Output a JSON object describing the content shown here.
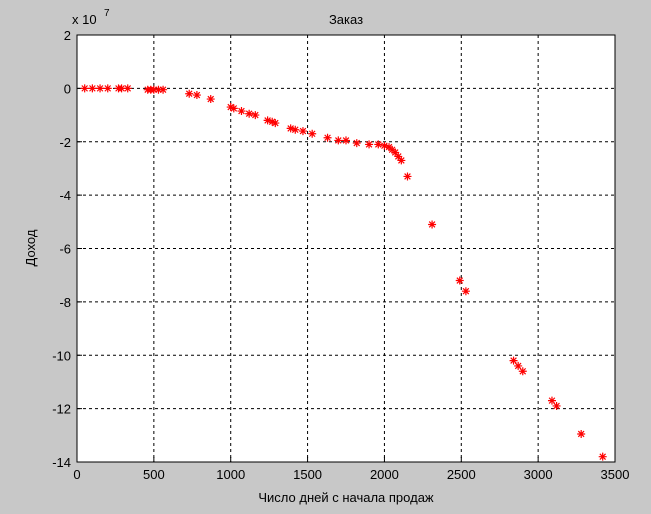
{
  "chart_data": {
    "type": "scatter",
    "title": "Заказ",
    "xlabel": "Число дней с начала продаж",
    "ylabel": "Доход",
    "y_multiplier": "x 10",
    "y_multiplier_exponent": "7",
    "marker": "asterisk",
    "color": "#ff0000",
    "grid": true,
    "xlim": [
      0,
      3500
    ],
    "xticks": [
      0,
      500,
      1000,
      1500,
      2000,
      2500,
      3000,
      3500
    ],
    "ylim": [
      -14,
      2
    ],
    "yticks": [
      -14,
      -12,
      -10,
      -8,
      -6,
      -4,
      -2,
      0,
      2
    ],
    "x": [
      50,
      100,
      150,
      200,
      270,
      290,
      330,
      460,
      480,
      500,
      530,
      560,
      730,
      780,
      870,
      1000,
      1020,
      1070,
      1120,
      1160,
      1240,
      1270,
      1290,
      1390,
      1420,
      1470,
      1530,
      1630,
      1700,
      1750,
      1820,
      1900,
      1960,
      2000,
      2030,
      2050,
      2070,
      2090,
      2110,
      2150,
      2310,
      2490,
      2530,
      2840,
      2870,
      2900,
      3090,
      3120,
      3280,
      3420
    ],
    "values": [
      0,
      0,
      0,
      0,
      0,
      0,
      0,
      -0.05,
      -0.05,
      -0.05,
      -0.05,
      -0.05,
      -0.2,
      -0.25,
      -0.4,
      -0.7,
      -0.75,
      -0.85,
      -0.95,
      -1.0,
      -1.2,
      -1.25,
      -1.3,
      -1.5,
      -1.55,
      -1.6,
      -1.7,
      -1.85,
      -1.95,
      -1.95,
      -2.05,
      -2.1,
      -2.1,
      -2.15,
      -2.2,
      -2.3,
      -2.4,
      -2.55,
      -2.7,
      -3.3,
      -5.1,
      -7.2,
      -7.6,
      -10.2,
      -10.4,
      -10.6,
      -11.7,
      -11.9,
      -12.95,
      -13.8
    ]
  }
}
